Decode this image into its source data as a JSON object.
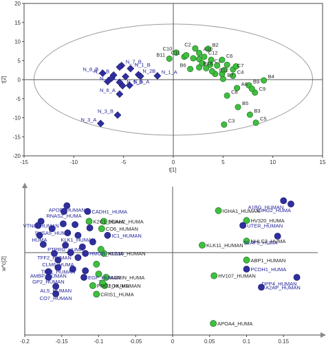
{
  "colors": {
    "blue": "#2f2f9e",
    "green": "#3fbf3f",
    "point_outline": "#1f5f1f",
    "label_blue": "#23239a",
    "label_dark": "#222222",
    "axis": "#444444",
    "ellipse": "#9a9a9a"
  },
  "chart_data": [
    {
      "type": "scatter",
      "title": "",
      "xlabel": "t[1]",
      "ylabel": "t[2]",
      "xlim": [
        -15,
        15
      ],
      "ylim": [
        -20,
        20
      ],
      "xticks": [
        "-15",
        "-10",
        "-5",
        "0",
        "5",
        "10",
        "15"
      ],
      "yticks": [
        "20",
        "15",
        "10",
        "5",
        "0",
        "-5",
        "-10",
        "-15",
        "-20"
      ],
      "grid": false,
      "ellipse": {
        "cx": 0,
        "cy": 0,
        "rx": 14,
        "ry": 14.6
      },
      "series": [
        {
          "marker": "diamond",
          "color": "blue",
          "points": [
            {
              "label": "N_7_B",
              "x": -5.2,
              "y": 3.7
            },
            {
              "label": "N_1_B",
              "x": -4.3,
              "y": 2.9
            },
            {
              "label": "N_8_B",
              "x": -7.1,
              "y": 1.7
            },
            {
              "label": "N_2B",
              "x": -3.5,
              "y": 1.3
            },
            {
              "label": "N_1_A",
              "x": -1.6,
              "y": 1.0
            },
            {
              "label": "N_4_B",
              "x": -6.0,
              "y": 1.2
            },
            {
              "label": "N_4_A",
              "x": -5.4,
              "y": -0.7
            },
            {
              "label": "N_5_B",
              "x": -5.1,
              "y": -1.6
            },
            {
              "label": "N_5_A",
              "x": -4.4,
              "y": -1.5
            },
            {
              "label": "N_6_A",
              "x": -5.4,
              "y": -3.8
            },
            {
              "label": "N_3_A",
              "x": -7.3,
              "y": -11.5
            },
            {
              "label": "N_3_B",
              "x": -5.6,
              "y": -9.3
            }
          ],
          "unlabeled": [
            {
              "x": -5.4,
              "y": 3.3
            },
            {
              "x": -6.2,
              "y": 0.4
            },
            {
              "x": -4.8,
              "y": 0.8
            },
            {
              "x": -3.3,
              "y": 0.9
            },
            {
              "x": -6.6,
              "y": -0.5
            }
          ]
        },
        {
          "marker": "circle",
          "color": "green",
          "points": [
            {
              "label": "C2",
              "x": 2.2,
              "y": 8.2
            },
            {
              "label": "B2",
              "x": 3.5,
              "y": 8.1
            },
            {
              "label": "C10",
              "x": 0.3,
              "y": 7.1
            },
            {
              "label": "A10",
              "x": 2.6,
              "y": 7.0
            },
            {
              "label": "B11",
              "x": -0.4,
              "y": 5.5
            },
            {
              "label": "C11",
              "x": 1.1,
              "y": 6.0
            },
            {
              "label": "C12",
              "x": 3.1,
              "y": 6.0
            },
            {
              "label": "C6",
              "x": 4.9,
              "y": 5.2
            },
            {
              "label": "C1",
              "x": 3.7,
              "y": 3.9
            },
            {
              "label": "B13",
              "x": 2.6,
              "y": 3.2
            },
            {
              "label": "B6",
              "x": 1.7,
              "y": 2.8
            },
            {
              "label": "C7",
              "x": 6.0,
              "y": 2.7
            },
            {
              "label": "B12",
              "x": 4.2,
              "y": 1.5
            },
            {
              "label": "C4",
              "x": 6.0,
              "y": 1.0
            },
            {
              "label": "B7",
              "x": 5.0,
              "y": 0.2
            },
            {
              "label": "B4",
              "x": 9.1,
              "y": -0.2
            },
            {
              "label": "A8",
              "x": 6.4,
              "y": -2.2
            },
            {
              "label": "B9",
              "x": 7.6,
              "y": -1.5
            },
            {
              "label": "C9",
              "x": 8.2,
              "y": -3.4
            },
            {
              "label": "C8",
              "x": 5.4,
              "y": -4.2
            },
            {
              "label": "B5",
              "x": 6.5,
              "y": -7.2
            },
            {
              "label": "B3",
              "x": 7.7,
              "y": -9.2
            },
            {
              "label": "C3",
              "x": 5.1,
              "y": -11.8
            },
            {
              "label": "C5",
              "x": 8.3,
              "y": -11.3
            }
          ],
          "unlabeled": [
            {
              "x": 1.3,
              "y": 6.4
            },
            {
              "x": 2.0,
              "y": 5.6
            },
            {
              "x": 2.6,
              "y": 5.4
            },
            {
              "x": 3.8,
              "y": 5.2
            },
            {
              "x": 2.9,
              "y": 4.3
            },
            {
              "x": 3.3,
              "y": 3.0
            },
            {
              "x": 3.9,
              "y": 2.2
            },
            {
              "x": 4.4,
              "y": 3.7
            },
            {
              "x": 5.4,
              "y": 3.9
            },
            {
              "x": 4.9,
              "y": 1.5
            },
            {
              "x": 5.1,
              "y": 2.5
            },
            {
              "x": 6.3,
              "y": 3.5
            },
            {
              "x": 7.9,
              "y": -2.4
            }
          ]
        }
      ]
    },
    {
      "type": "scatter",
      "title": "",
      "xlabel": "",
      "ylabel": "w*c[2]",
      "xlim": [
        -0.2,
        0.2
      ],
      "ylim": [
        -0.5,
        0.4
      ],
      "xticks": [
        "-0.2",
        "-0.15",
        "-0.1",
        "-0.05",
        "0",
        "0.05",
        "0.1",
        "0.15"
      ],
      "grid": false,
      "dividers": {
        "x": 0,
        "y": 0
      },
      "points": [
        {
          "label": "APOD_HUMAN",
          "x": -0.143,
          "y": 0.285,
          "color": "blue"
        },
        {
          "label": "RNAS2_HUMA",
          "x": -0.147,
          "y": 0.25,
          "color": "blue"
        },
        {
          "label": "CADH1_HUMA",
          "x": -0.115,
          "y": 0.25,
          "color": "blue"
        },
        {
          "label": "VTNC_HUMAN",
          "x": -0.178,
          "y": 0.19,
          "color": "blue"
        },
        {
          "label": "K2C1_HUMA",
          "x": -0.113,
          "y": 0.19,
          "color": "green"
        },
        {
          "label": "DDAH2_HUMA",
          "x": -0.093,
          "y": 0.19,
          "color": "green"
        },
        {
          "label": "SUSA5_HUMA",
          "x": -0.163,
          "y": 0.145,
          "color": "blue"
        },
        {
          "label": "CO6_HUMAN",
          "x": -0.096,
          "y": 0.145,
          "color": "green"
        },
        {
          "label": "HUMA",
          "x": -0.18,
          "y": 0.105,
          "color": "blue"
        },
        {
          "label": "KLK1_HUMAN",
          "x": -0.128,
          "y": 0.105,
          "color": "blue"
        },
        {
          "label": "IC1_HUMAN",
          "x": -0.088,
          "y": 0.105,
          "color": "blue"
        },
        {
          "label": "PTPRG_HUMA",
          "x": -0.145,
          "y": 0.045,
          "color": "blue"
        },
        {
          "label": "TFF2_HUMAN",
          "x": -0.16,
          "y": -0.005,
          "color": "blue"
        },
        {
          "label": "HMGR_HUMA",
          "x": -0.118,
          "y": -0.005,
          "color": "blue"
        },
        {
          "label": "K1C10_HUMAN",
          "x": -0.093,
          "y": -0.005,
          "color": "green"
        },
        {
          "label": "CLM6_HUMA",
          "x": -0.155,
          "y": -0.045,
          "color": "blue"
        },
        {
          "label": "TFF1_HUMAN",
          "x": -0.155,
          "y": -0.09,
          "color": "blue"
        },
        {
          "label": "AMBP_HUMAN",
          "x": -0.168,
          "y": -0.115,
          "color": "blue"
        },
        {
          "label": "GP2_HUMAN",
          "x": -0.168,
          "y": -0.15,
          "color": "blue"
        },
        {
          "label": "EGF_HUMAN",
          "x": -0.12,
          "y": -0.15,
          "color": "blue"
        },
        {
          "label": "AGRIN_HUMA",
          "x": -0.09,
          "y": -0.15,
          "color": "green"
        },
        {
          "label": "ALS_HUMAN",
          "x": -0.158,
          "y": -0.205,
          "color": "blue"
        },
        {
          "label": "PRG2_HUMA",
          "x": -0.108,
          "y": -0.2,
          "color": "green"
        },
        {
          "label": "LOX_HUMAN",
          "x": -0.092,
          "y": -0.2,
          "color": "green"
        },
        {
          "label": "CO7_HUMAN",
          "x": -0.158,
          "y": -0.25,
          "color": "blue"
        },
        {
          "label": "CRIS1_HUMA",
          "x": -0.103,
          "y": -0.252,
          "color": "green"
        },
        {
          "label": "A1BG_HUMAN",
          "x": 0.15,
          "y": 0.315,
          "color": "blue"
        },
        {
          "label": "IGHG2_HUMA",
          "x": 0.16,
          "y": 0.295,
          "color": "blue"
        },
        {
          "label": "IGHA1_HUMAN",
          "x": 0.062,
          "y": 0.255,
          "color": "green"
        },
        {
          "label": "HV320_HUMA",
          "x": 0.1,
          "y": 0.195,
          "color": "green"
        },
        {
          "label": "UTER_HUMAN",
          "x": 0.095,
          "y": 0.165,
          "color": "blue"
        },
        {
          "label": "SLAF5_HUMA",
          "x": 0.142,
          "y": 0.1,
          "color": "blue"
        },
        {
          "label": "KLK11_HUMAN",
          "x": 0.04,
          "y": 0.045,
          "color": "green"
        },
        {
          "label": "NHLC3_HUMA",
          "x": 0.1,
          "y": 0.07,
          "color": "green"
        },
        {
          "label": "ABP1_HUMAN",
          "x": 0.1,
          "y": -0.045,
          "color": "green"
        },
        {
          "label": "PCDH1_HUMA",
          "x": 0.1,
          "y": -0.1,
          "color": "blue"
        },
        {
          "label": "HV107_HUMAN",
          "x": 0.056,
          "y": -0.14,
          "color": "green"
        },
        {
          "label": "DPP4_HUMAN",
          "x": 0.168,
          "y": -0.15,
          "color": "blue"
        },
        {
          "label": "A2AP_HUMAN",
          "x": 0.12,
          "y": -0.21,
          "color": "blue"
        },
        {
          "label": "APOA4_HUMA",
          "x": 0.055,
          "y": -0.43,
          "color": "green"
        }
      ],
      "unlabeled": [
        {
          "x": -0.182,
          "y": 0.165,
          "color": "blue"
        },
        {
          "x": -0.175,
          "y": 0.05,
          "color": "blue"
        },
        {
          "x": -0.148,
          "y": 0.175,
          "color": "blue"
        },
        {
          "x": -0.142,
          "y": 0.12,
          "color": "blue"
        },
        {
          "x": -0.138,
          "y": 0.0,
          "color": "blue"
        },
        {
          "x": -0.135,
          "y": -0.1,
          "color": "blue"
        },
        {
          "x": -0.132,
          "y": 0.17,
          "color": "blue"
        },
        {
          "x": -0.128,
          "y": -0.03,
          "color": "blue"
        },
        {
          "x": -0.122,
          "y": 0.035,
          "color": "blue"
        },
        {
          "x": -0.118,
          "y": -0.11,
          "color": "blue"
        },
        {
          "x": -0.112,
          "y": 0.15,
          "color": "blue"
        },
        {
          "x": -0.108,
          "y": 0.065,
          "color": "blue"
        },
        {
          "x": -0.103,
          "y": -0.07,
          "color": "green"
        },
        {
          "x": -0.1,
          "y": -0.13,
          "color": "green"
        },
        {
          "x": -0.097,
          "y": 0.02,
          "color": "green"
        },
        {
          "x": -0.095,
          "y": -0.185,
          "color": "green"
        }
      ]
    }
  ]
}
